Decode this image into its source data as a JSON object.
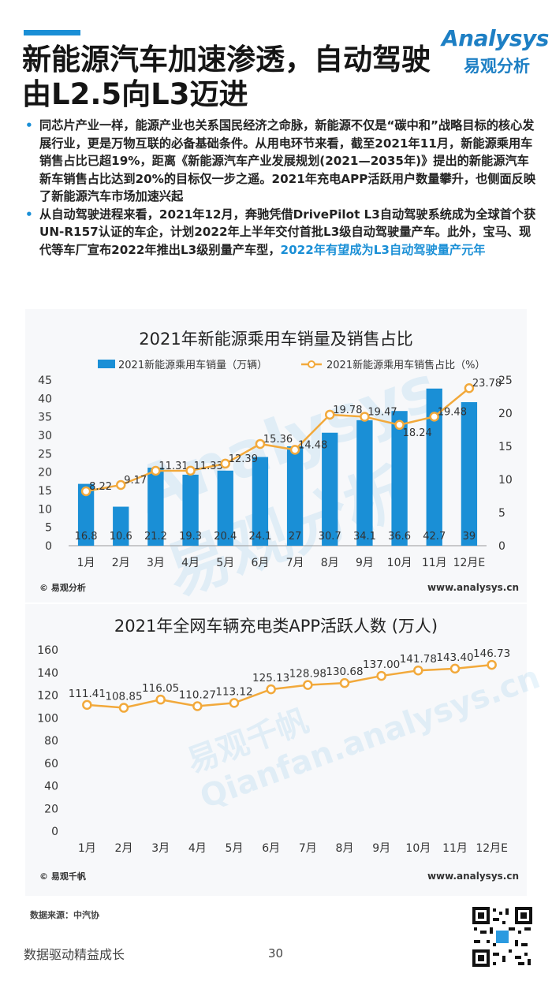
{
  "title": "新能源汽车加速渗透，自动驾驶由L2.5向L3迈进",
  "logo": {
    "en": "Analysys",
    "cn": "易观分析"
  },
  "bullets": [
    {
      "text": "同芯片产业一样，能源产业也关系国民经济之命脉，新能源不仅是“碳中和”战略目标的核心发展行业，更是万物互联的必备基础条件。从用电环节来看，截至2021年11月，新能源乘用车销售占比已超19%，距离《新能源汽车产业发展规划(2021—2035年)》提出的新能源汽车新车销售占比达到20%的目标仅一步之遥。2021年充电APP活跃用户数量攀升，也侧面反映了新能源汽车市场加速兴起",
      "highlight": ""
    },
    {
      "text": "从自动驾驶进程来看，2021年12月，奔驰凭借DrivePilot L3自动驾驶系统成为全球首个获UN-R157认证的车企，计划2022年上半年交付首批L3级自动驾驶量产车。此外，宝马、现代等车厂宣布2022年推出L3级别量产车型，",
      "highlight": "2022年有望成为L3自动驾驶量产元年"
    }
  ],
  "chart_data": [
    {
      "type": "bar",
      "title": "2021年新能源乘用车销量及销售占比",
      "categories": [
        "1月",
        "2月",
        "3月",
        "4月",
        "5月",
        "6月",
        "7月",
        "8月",
        "9月",
        "10月",
        "11月",
        "12月E"
      ],
      "series": [
        {
          "name": "2021新能源乘用车销量（万辆）",
          "type": "bar",
          "axis": "left",
          "values": [
            16.8,
            10.6,
            21.2,
            19.3,
            20.4,
            24.1,
            27,
            30.7,
            34.1,
            36.6,
            42.7,
            39
          ],
          "labels": [
            "16.8",
            "10.6",
            "21.2",
            "19.3",
            "20.4",
            "24.1",
            "27",
            "30.7",
            "34.1",
            "36.6",
            "42.7",
            "39"
          ]
        },
        {
          "name": "2021新能源乘用车销售占比（%）",
          "type": "line",
          "axis": "right",
          "values": [
            8.22,
            9.17,
            11.31,
            11.33,
            12.39,
            15.36,
            14.48,
            19.78,
            19.47,
            18.24,
            19.48,
            23.78
          ],
          "labels": [
            "8.22",
            "9.17",
            "11.31",
            "11.33",
            "12.39",
            "15.36",
            "14.48",
            "19.78",
            "19.47",
            "18.24",
            "19.48",
            "23.78"
          ]
        }
      ],
      "ylim_left": [
        0,
        45
      ],
      "yticks_left": [
        "0",
        "5",
        "10",
        "15",
        "20",
        "25",
        "30",
        "35",
        "40",
        "45"
      ],
      "ylim_right": [
        0,
        25
      ],
      "yticks_right": [
        "0",
        "5",
        "10",
        "15",
        "20",
        "25"
      ],
      "legend": "top",
      "grid": false,
      "credit_left": "© 易观分析",
      "credit_right": "www.analysys.cn",
      "colors": {
        "bar": "#1a8fd6",
        "line": "#f2a93b"
      }
    },
    {
      "type": "line",
      "title": "2021年全网车辆充电类APP活跃人数 (万人)",
      "categories": [
        "1月",
        "2月",
        "3月",
        "4月",
        "5月",
        "6月",
        "7月",
        "8月",
        "9月",
        "10月",
        "11月",
        "12月E"
      ],
      "series": [
        {
          "values": [
            111.41,
            108.85,
            116.05,
            110.27,
            113.12,
            125.13,
            128.98,
            130.68,
            137.0,
            141.78,
            143.4,
            146.73
          ],
          "labels": [
            "111.41",
            "108.85",
            "116.05",
            "110.27",
            "113.12",
            "125.13",
            "128.98",
            "130.68",
            "137.00",
            "141.78",
            "143.40",
            "146.73"
          ]
        }
      ],
      "ylim": [
        0,
        160
      ],
      "yticks": [
        "0",
        "20",
        "40",
        "60",
        "80",
        "100",
        "120",
        "140",
        "160"
      ],
      "grid": false,
      "credit_left": "© 易观千帆",
      "credit_right": "www.analysys.cn",
      "colors": {
        "line": "#f2a93b"
      }
    }
  ],
  "source": "数据来源：中汽协",
  "footer": {
    "slogan": "数据驱动精益成长",
    "page": "30"
  }
}
